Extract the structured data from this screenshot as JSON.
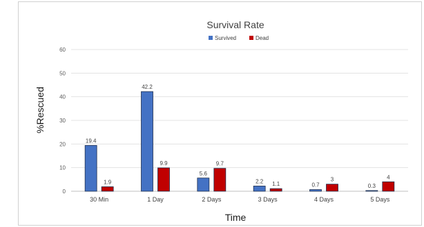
{
  "chart_data": {
    "type": "bar",
    "title": "Survival Rate",
    "xlabel": "Time",
    "ylabel": "%Rescued",
    "categories": [
      "30 Min",
      "1 Day",
      "2 Days",
      "3 Days",
      "4 Days",
      "5 Days"
    ],
    "series": [
      {
        "name": "Survived",
        "values": [
          19.4,
          42.2,
          5.6,
          2.2,
          0.7,
          0.3
        ],
        "color": "#4472c4"
      },
      {
        "name": "Dead",
        "values": [
          1.9,
          9.9,
          9.7,
          1.1,
          3,
          4
        ],
        "color": "#c00000"
      }
    ],
    "ylim": [
      0,
      60
    ],
    "yticks": [
      0,
      10,
      20,
      30,
      40,
      50,
      60
    ],
    "grid": true,
    "legend": "top-center",
    "data_labels": true
  }
}
